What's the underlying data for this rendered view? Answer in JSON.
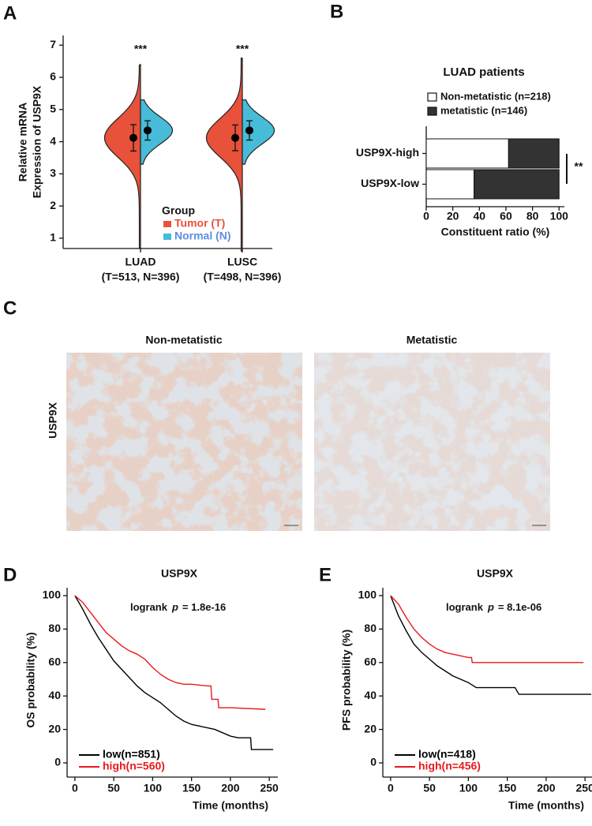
{
  "chart_data": [
    {
      "type": "violin",
      "panel": "A",
      "ylabel": [
        "Relative mRNA",
        "Expression of USP9X"
      ],
      "categories": [
        "LUAD",
        "LUSC"
      ],
      "category_notes": [
        "(T=513, N=396)",
        "(T=498, N=396)"
      ],
      "annotations": [
        "***",
        "***"
      ],
      "legend_title": "Group",
      "series": [
        {
          "name": "Tumor (T)",
          "color": "#e8513a",
          "label_color": "#e8513a",
          "side": "left",
          "values": [
            4.12,
            4.12
          ],
          "error": [
            0.41,
            0.4
          ],
          "range": [
            [
              0.7,
              6.4
            ],
            [
              0.6,
              6.6
            ]
          ]
        },
        {
          "name": "Normal (N)",
          "color": "#46bcd8",
          "label_color": "#5b8fe0",
          "side": "right",
          "values": [
            4.35,
            4.35
          ],
          "error": [
            0.3,
            0.3
          ],
          "range": [
            [
              3.3,
              5.3
            ],
            [
              3.3,
              5.3
            ]
          ]
        }
      ],
      "ylim": [
        0.68,
        7.3
      ],
      "yticks": [
        1,
        2,
        3,
        4,
        5,
        6,
        7
      ]
    },
    {
      "type": "stacked_hbar",
      "panel": "B",
      "title": "LUAD patients",
      "categories": [
        "USP9X-high",
        "USP9X-low"
      ],
      "series": [
        {
          "name": "Non-metatistic (n=218)",
          "color": "#ffffff",
          "values": [
            62,
            36
          ]
        },
        {
          "name": "metatistic (n=146)",
          "color": "#333333",
          "values": [
            38,
            64
          ]
        }
      ],
      "xlabel": "Constituent ratio (%)",
      "xlim": [
        0,
        104
      ],
      "xticks": [
        0,
        20,
        40,
        60,
        80,
        100
      ],
      "annotations": [
        "**"
      ]
    },
    {
      "type": "km",
      "panel": "D",
      "title": "USP9X",
      "annotation": {
        "text": "logrank",
        "p": "p",
        "stat": "= 1.8e-16"
      },
      "xlabel": "Time (months)",
      "ylabel": "OS probability (%)",
      "xlim": [
        -10,
        261
      ],
      "xticks": [
        0,
        50,
        100,
        150,
        200,
        250
      ],
      "ylim": [
        -8.5,
        104.7
      ],
      "yticks": [
        0,
        20,
        40,
        60,
        80,
        100
      ],
      "series": [
        {
          "name": "low(n=851)",
          "color": "#000000",
          "x": [
            0,
            10,
            20,
            30,
            40,
            50,
            60,
            70,
            80,
            90,
            100,
            110,
            120,
            130,
            140,
            150,
            160,
            170,
            180,
            190,
            200,
            210,
            226,
            227,
            255
          ],
          "values": [
            100,
            92,
            83,
            75,
            68,
            61,
            56,
            51,
            46,
            42,
            39,
            36,
            32,
            28,
            25,
            23,
            22,
            21,
            20,
            18,
            16,
            15,
            15,
            8,
            8
          ]
        },
        {
          "name": "high(n=560)",
          "color": "#e8191b",
          "x": [
            0,
            10,
            20,
            30,
            40,
            50,
            60,
            70,
            80,
            90,
            100,
            110,
            120,
            130,
            140,
            150,
            170,
            175,
            176,
            184,
            185,
            200,
            245
          ],
          "values": [
            100,
            96,
            90,
            84,
            78,
            74,
            70,
            67,
            65,
            62,
            57,
            53,
            50,
            48,
            47,
            47,
            46,
            46,
            38,
            38,
            33,
            33,
            32
          ]
        }
      ]
    },
    {
      "type": "km",
      "panel": "E",
      "title": "USP9X",
      "annotation": {
        "text": "logrank",
        "p": "p",
        "stat": "= 8.1e-06"
      },
      "xlabel": "Time (months)",
      "ylabel": "PFS probability (%)",
      "xlim": [
        -10,
        261
      ],
      "xticks": [
        0,
        50,
        100,
        150,
        200,
        250
      ],
      "ylim": [
        -8.5,
        104.7
      ],
      "yticks": [
        0,
        20,
        40,
        60,
        80,
        100
      ],
      "series": [
        {
          "name": "low(n=418)",
          "color": "#000000",
          "x": [
            0,
            10,
            20,
            30,
            40,
            50,
            60,
            70,
            80,
            90,
            100,
            110,
            160,
            165,
            258
          ],
          "values": [
            100,
            88,
            79,
            71,
            66,
            62,
            58,
            55,
            52,
            50,
            48,
            45,
            45,
            41,
            41
          ]
        },
        {
          "name": "high(n=456)",
          "color": "#e8191b",
          "x": [
            0,
            10,
            20,
            30,
            40,
            50,
            60,
            70,
            80,
            90,
            100,
            104,
            105,
            248
          ],
          "values": [
            100,
            95,
            87,
            80,
            75,
            71,
            68,
            66,
            65,
            64,
            63,
            63,
            60,
            60
          ]
        }
      ]
    }
  ],
  "panel_c": {
    "panel": "C",
    "row_label": "USP9X",
    "images": [
      {
        "title": "Non-metatistic"
      },
      {
        "title": "Metatistic"
      }
    ]
  }
}
